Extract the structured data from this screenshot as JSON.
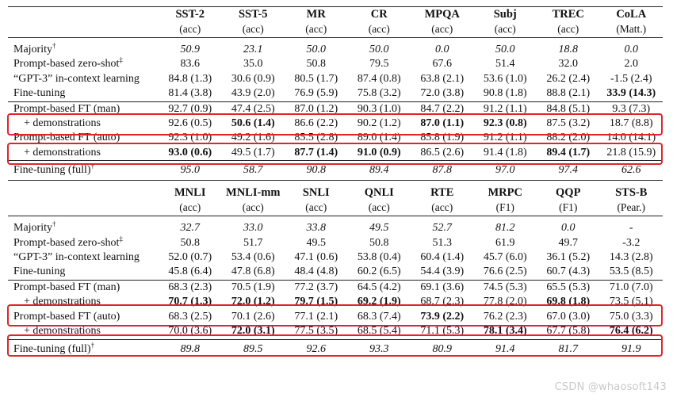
{
  "table1": {
    "columns": [
      {
        "name": "SST-2",
        "metric": "(acc)"
      },
      {
        "name": "SST-5",
        "metric": "(acc)"
      },
      {
        "name": "MR",
        "metric": "(acc)"
      },
      {
        "name": "CR",
        "metric": "(acc)"
      },
      {
        "name": "MPQA",
        "metric": "(acc)"
      },
      {
        "name": "Subj",
        "metric": "(acc)"
      },
      {
        "name": "TREC",
        "metric": "(acc)"
      },
      {
        "name": "CoLA",
        "metric": "(Matt.)"
      }
    ],
    "rows": [
      {
        "label": "Majority",
        "sup": "†",
        "italic": true,
        "values": [
          "50.9",
          "23.1",
          "50.0",
          "50.0",
          "0.0",
          "50.0",
          "18.8",
          "0.0"
        ],
        "bold": []
      },
      {
        "label": "Prompt-based zero-shot",
        "sup": "‡",
        "values": [
          "83.6",
          "35.0",
          "50.8",
          "79.5",
          "67.6",
          "51.4",
          "32.0",
          "2.0"
        ],
        "bold": []
      },
      {
        "label": "“GPT-3” in-context learning",
        "values": [
          "84.8 (1.3)",
          "30.6 (0.9)",
          "80.5 (1.7)",
          "87.4 (0.8)",
          "63.8 (2.1)",
          "53.6 (1.0)",
          "26.2 (2.4)",
          "-1.5 (2.4)"
        ],
        "bold": []
      },
      {
        "label": "Fine-tuning",
        "values": [
          "81.4 (3.8)",
          "43.9 (2.0)",
          "76.9 (5.9)",
          "75.8 (3.2)",
          "72.0 (3.8)",
          "90.8 (1.8)",
          "88.8 (2.1)",
          "33.9 (14.3)"
        ],
        "bold": [
          7
        ]
      },
      {
        "label": "Prompt-based FT (man)",
        "values": [
          "92.7 (0.9)",
          "47.4 (2.5)",
          "87.0 (1.2)",
          "90.3 (1.0)",
          "84.7 (2.2)",
          "91.2 (1.1)",
          "84.8 (5.1)",
          "9.3 (7.3)"
        ],
        "bold": []
      },
      {
        "label": "+ demonstrations",
        "indent": true,
        "values": [
          "92.6 (0.5)",
          "50.6 (1.4)",
          "86.6 (2.2)",
          "90.2 (1.2)",
          "87.0 (1.1)",
          "92.3 (0.8)",
          "87.5 (3.2)",
          "18.7 (8.8)"
        ],
        "bold": [
          1,
          4,
          5
        ]
      },
      {
        "label": "Prompt-based FT (auto)",
        "values": [
          "92.3 (1.0)",
          "49.2 (1.6)",
          "85.5 (2.8)",
          "89.0 (1.4)",
          "85.8 (1.9)",
          "91.2 (1.1)",
          "88.2 (2.0)",
          "14.0 (14.1)"
        ],
        "bold": []
      },
      {
        "label": "+ demonstrations",
        "indent": true,
        "values": [
          "93.0 (0.6)",
          "49.5 (1.7)",
          "87.7 (1.4)",
          "91.0 (0.9)",
          "86.5 (2.6)",
          "91.4 (1.8)",
          "89.4 (1.7)",
          "21.8 (15.9)"
        ],
        "bold": [
          0,
          2,
          3,
          6
        ]
      },
      {
        "label": "Fine-tuning (full)",
        "sup": "†",
        "italic": true,
        "ref": true,
        "values": [
          "95.0",
          "58.7",
          "90.8",
          "89.4",
          "87.8",
          "97.0",
          "97.4",
          "62.6"
        ],
        "bold": []
      }
    ]
  },
  "table2": {
    "columns": [
      {
        "name": "MNLI",
        "metric": "(acc)"
      },
      {
        "name": "MNLI-mm",
        "metric": "(acc)"
      },
      {
        "name": "SNLI",
        "metric": "(acc)"
      },
      {
        "name": "QNLI",
        "metric": "(acc)"
      },
      {
        "name": "RTE",
        "metric": "(acc)"
      },
      {
        "name": "MRPC",
        "metric": "(F1)"
      },
      {
        "name": "QQP",
        "metric": "(F1)"
      },
      {
        "name": "STS-B",
        "metric": "(Pear.)"
      }
    ],
    "rows": [
      {
        "label": "Majority",
        "sup": "†",
        "italic": true,
        "values": [
          "32.7",
          "33.0",
          "33.8",
          "49.5",
          "52.7",
          "81.2",
          "0.0",
          "-"
        ],
        "bold": []
      },
      {
        "label": "Prompt-based zero-shot",
        "sup": "‡",
        "values": [
          "50.8",
          "51.7",
          "49.5",
          "50.8",
          "51.3",
          "61.9",
          "49.7",
          "-3.2"
        ],
        "bold": []
      },
      {
        "label": "“GPT-3” in-context learning",
        "values": [
          "52.0 (0.7)",
          "53.4 (0.6)",
          "47.1 (0.6)",
          "53.8 (0.4)",
          "60.4 (1.4)",
          "45.7 (6.0)",
          "36.1 (5.2)",
          "14.3 (2.8)"
        ],
        "bold": []
      },
      {
        "label": "Fine-tuning",
        "values": [
          "45.8 (6.4)",
          "47.8 (6.8)",
          "48.4 (4.8)",
          "60.2 (6.5)",
          "54.4 (3.9)",
          "76.6 (2.5)",
          "60.7 (4.3)",
          "53.5 (8.5)"
        ],
        "bold": []
      },
      {
        "label": "Prompt-based FT (man)",
        "values": [
          "68.3 (2.3)",
          "70.5 (1.9)",
          "77.2 (3.7)",
          "64.5 (4.2)",
          "69.1 (3.6)",
          "74.5 (5.3)",
          "65.5 (5.3)",
          "71.0 (7.0)"
        ],
        "bold": []
      },
      {
        "label": "+ demonstrations",
        "indent": true,
        "values": [
          "70.7 (1.3)",
          "72.0 (1.2)",
          "79.7 (1.5)",
          "69.2 (1.9)",
          "68.7 (2.3)",
          "77.8 (2.0)",
          "69.8 (1.8)",
          "73.5 (5.1)"
        ],
        "bold": [
          0,
          1,
          2,
          3,
          6
        ]
      },
      {
        "label": "Prompt-based FT (auto)",
        "values": [
          "68.3 (2.5)",
          "70.1 (2.6)",
          "77.1 (2.1)",
          "68.3 (7.4)",
          "73.9 (2.2)",
          "76.2 (2.3)",
          "67.0 (3.0)",
          "75.0 (3.3)"
        ],
        "bold": [
          4
        ]
      },
      {
        "label": "+ demonstrations",
        "indent": true,
        "values": [
          "70.0 (3.6)",
          "72.0 (3.1)",
          "77.5 (3.5)",
          "68.5 (5.4)",
          "71.1 (5.3)",
          "78.1 (3.4)",
          "67.7 (5.8)",
          "76.4 (6.2)"
        ],
        "bold": [
          1,
          5,
          7
        ]
      },
      {
        "label": "Fine-tuning (full)",
        "sup": "†",
        "italic": true,
        "ref": true,
        "values": [
          "89.8",
          "89.5",
          "92.6",
          "93.3",
          "80.9",
          "91.4",
          "81.7",
          "91.9"
        ],
        "bold": []
      }
    ]
  },
  "watermark": "CSDN @whaosoft143",
  "highlight_color": "#e0242c"
}
